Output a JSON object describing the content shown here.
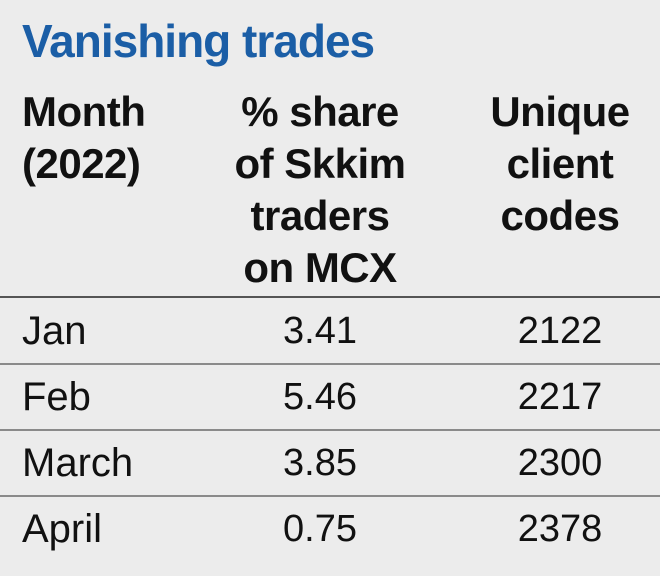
{
  "title": "Vanishing trades",
  "table": {
    "header": [
      [
        "Month",
        "(2022)"
      ],
      [
        "% share",
        "of Skkim",
        "traders",
        "on MCX"
      ],
      [
        "Unique",
        "client",
        "codes"
      ]
    ],
    "rows": [
      [
        "Jan",
        "3.41",
        "2122"
      ],
      [
        "Feb",
        "5.46",
        "2217"
      ],
      [
        "March",
        "3.85",
        "2300"
      ],
      [
        "April",
        "0.75",
        "2378"
      ]
    ]
  }
}
